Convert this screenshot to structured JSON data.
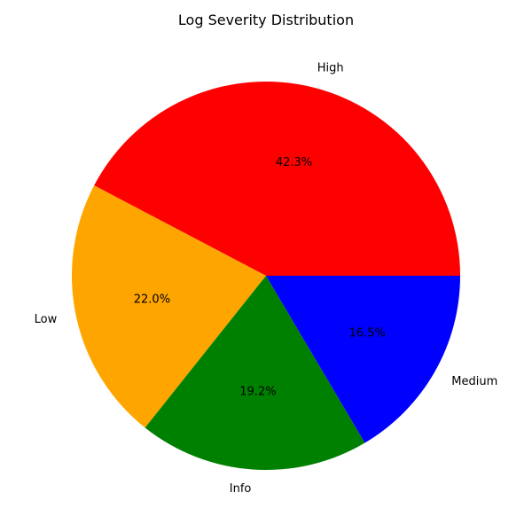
{
  "chart_data": {
    "type": "pie",
    "title": "Log Severity Distribution",
    "categories": [
      "High",
      "Low",
      "Info",
      "Medium"
    ],
    "values": [
      42.3,
      22.0,
      19.2,
      16.5
    ],
    "value_labels": [
      "42.3%",
      "22.0%",
      "19.2%",
      "16.5%"
    ],
    "colors": [
      "#ff0000",
      "#ffa500",
      "#008000",
      "#0000ff"
    ],
    "start_angle": 0,
    "direction": "counterclockwise",
    "legend": "none"
  }
}
